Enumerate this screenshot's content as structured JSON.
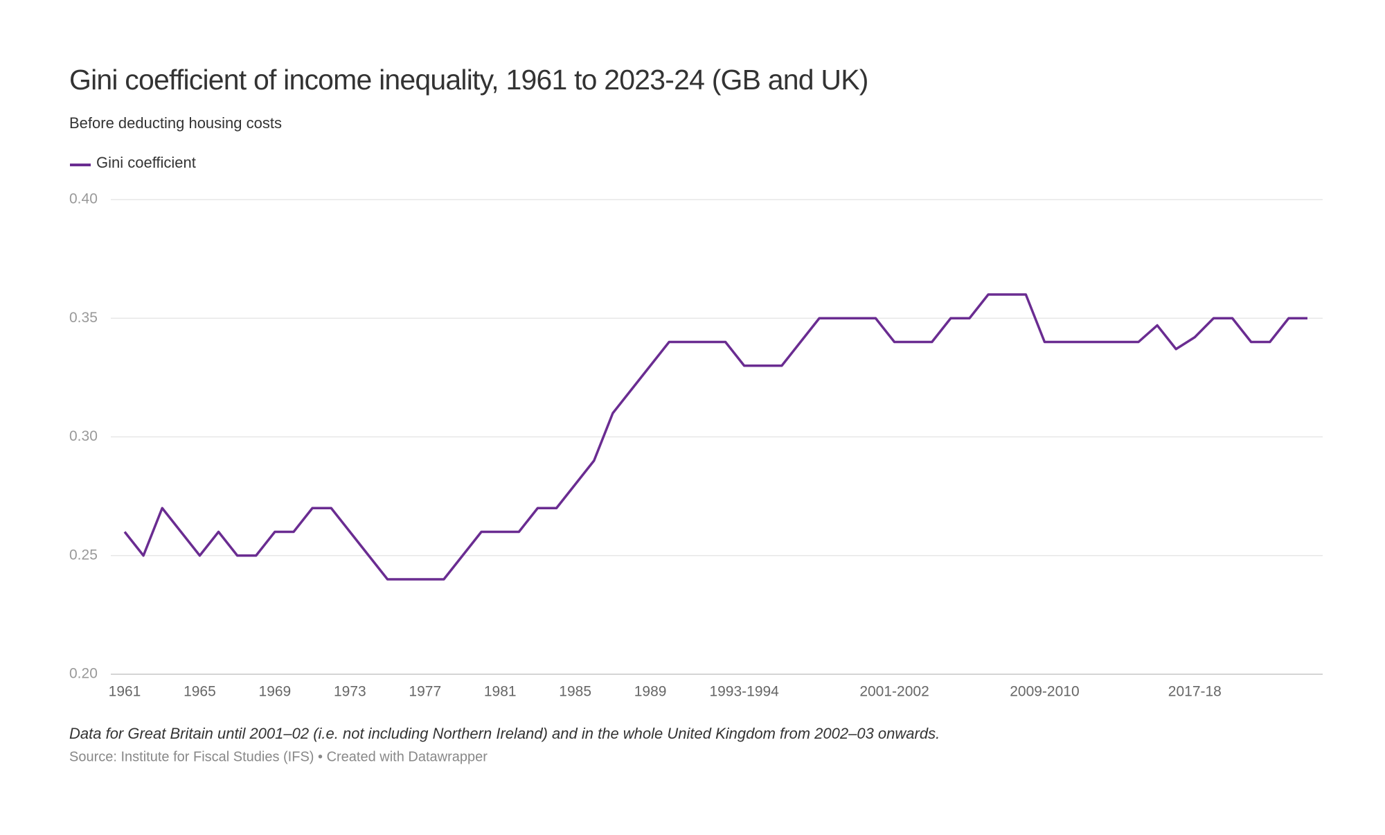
{
  "chart_data": {
    "type": "line",
    "title": "Gini coefficient of income inequality, 1961 to 2023-24 (GB and UK)",
    "subtitle": "Before deducting housing costs",
    "note": "Data for Great Britain until 2001–02 (i.e. not including Northern Ireland) and in the whole United Kingdom from 2002–03 onwards.",
    "source": "Source: Institute for Fiscal Studies (IFS) • Created with Datawrapper",
    "categories": [
      "1961",
      null,
      null,
      null,
      "1965",
      null,
      null,
      null,
      "1969",
      null,
      null,
      null,
      "1973",
      null,
      null,
      null,
      "1977",
      null,
      null,
      null,
      "1981",
      null,
      null,
      null,
      "1985",
      null,
      null,
      null,
      "1989",
      null,
      null,
      null,
      null,
      "1993-1994",
      null,
      null,
      null,
      null,
      null,
      null,
      null,
      "2001-2002",
      null,
      null,
      null,
      null,
      null,
      null,
      null,
      "2009-2010",
      null,
      null,
      null,
      null,
      null,
      null,
      null,
      "2017-18",
      null,
      null,
      null,
      null,
      null,
      null
    ],
    "series": [
      {
        "name": "Gini coefficient",
        "color": "#6a2c91",
        "values": [
          0.26,
          0.25,
          0.27,
          0.26,
          0.25,
          0.26,
          0.25,
          0.25,
          0.26,
          0.26,
          0.27,
          0.27,
          0.26,
          0.25,
          0.24,
          0.24,
          0.24,
          0.24,
          0.25,
          0.26,
          0.26,
          0.26,
          0.27,
          0.27,
          0.28,
          0.29,
          0.31,
          0.32,
          0.33,
          0.34,
          0.34,
          0.34,
          0.34,
          0.33,
          0.33,
          0.33,
          0.34,
          0.35,
          0.35,
          0.35,
          0.35,
          0.34,
          0.34,
          0.34,
          0.35,
          0.35,
          0.36,
          0.36,
          0.36,
          0.34,
          0.34,
          0.34,
          0.34,
          0.34,
          0.34,
          0.347,
          0.337,
          0.342,
          0.35,
          0.35,
          0.34,
          0.34,
          0.35,
          0.35
        ]
      }
    ],
    "ylim": [
      0.2,
      0.4
    ],
    "yticks": [
      {
        "value": 0.2,
        "label": "0.20"
      },
      0.25,
      {
        "value": 0.3,
        "label": "0.30"
      },
      0.35,
      {
        "value": 0.4,
        "label": "0.40"
      }
    ],
    "grid": true
  }
}
